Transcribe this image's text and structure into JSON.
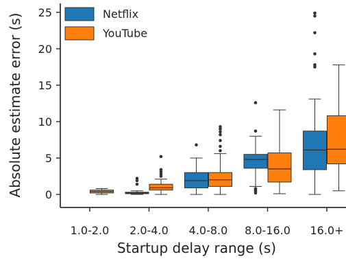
{
  "chart_data": {
    "type": "box",
    "xlabel": "Startup delay range (s)",
    "ylabel": "Absolute estimate error (s)",
    "ylim": [
      -1.5,
      26
    ],
    "yticks": [
      0,
      5,
      10,
      15,
      20,
      25
    ],
    "categories": [
      "1.0-2.0",
      "2.0-4.0",
      "4.0-8.0",
      "8.0-16.0",
      "16.0+"
    ],
    "legend": {
      "placement": "top-left"
    },
    "series": [
      {
        "name": "Netflix",
        "color": "#1f77b4",
        "boxes": [
          null,
          {
            "whisker_low": 0.0,
            "q1": 0.1,
            "median": 0.2,
            "q3": 0.3,
            "whisker_high": 0.5,
            "outliers": [
              1.4,
              1.9,
              2.2
            ]
          },
          {
            "whisker_low": 0.0,
            "q1": 0.9,
            "median": 1.9,
            "q3": 3.0,
            "whisker_high": 5.0,
            "outliers": [
              6.8
            ]
          },
          {
            "whisker_low": 1.1,
            "q1": 3.6,
            "median": 4.8,
            "q3": 5.5,
            "whisker_high": 8.0,
            "outliers": [
              0.2,
              0.4,
              0.6,
              0.8,
              8.7,
              12.6
            ]
          },
          {
            "whisker_low": 0.0,
            "q1": 3.4,
            "median": 6.1,
            "q3": 8.7,
            "whisker_high": 13.1,
            "outliers": [
              17.5,
              17.8,
              19.3,
              22.2,
              24.5,
              24.9
            ]
          }
        ]
      },
      {
        "name": "YouTube",
        "color": "#ff7f0e",
        "boxes": [
          {
            "whisker_low": 0.0,
            "q1": 0.2,
            "median": 0.4,
            "q3": 0.6,
            "whisker_high": 0.8,
            "outliers": []
          },
          {
            "whisker_low": 0.0,
            "q1": 0.6,
            "median": 0.9,
            "q3": 1.4,
            "whisker_high": 2.1,
            "outliers": [
              2.5,
              2.8,
              3.1,
              3.4,
              5.2
            ]
          },
          {
            "whisker_low": 0.0,
            "q1": 1.1,
            "median": 2.0,
            "q3": 3.0,
            "whisker_high": 5.6,
            "outliers": [
              6.0,
              6.6,
              7.4,
              8.2,
              8.6,
              9.0,
              9.3
            ]
          },
          {
            "whisker_low": 0.1,
            "q1": 1.7,
            "median": 3.5,
            "q3": 5.7,
            "whisker_high": 11.6,
            "outliers": []
          },
          {
            "whisker_low": 0.5,
            "q1": 4.2,
            "median": 6.2,
            "q3": 10.8,
            "whisker_high": 17.8,
            "outliers": []
          }
        ]
      }
    ]
  }
}
